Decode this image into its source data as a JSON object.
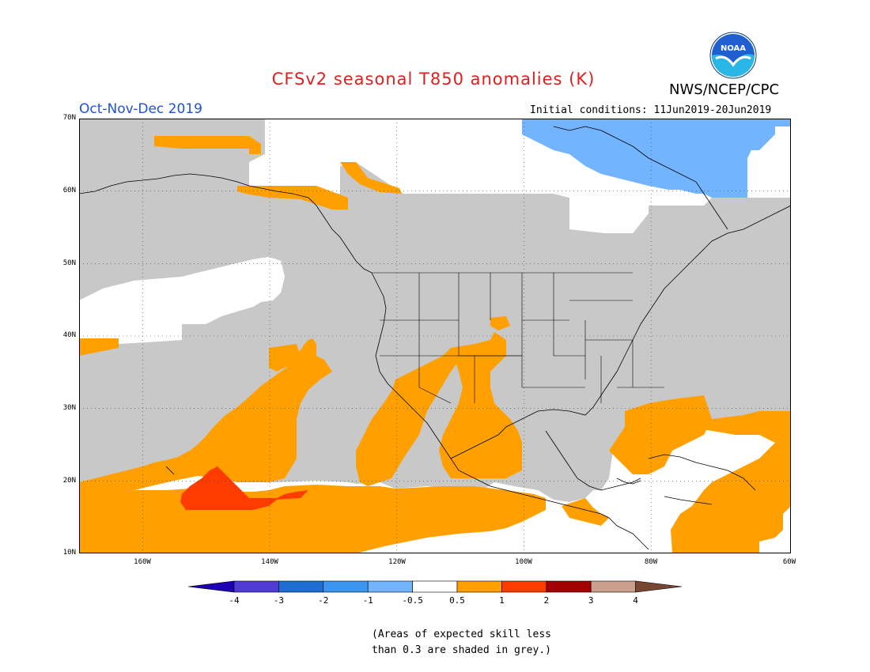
{
  "title": "CFSv2 seasonal T850 anomalies (K)",
  "agency": "NWS/NCEP/CPC",
  "logo_text": "NOAA",
  "period": "Oct-Nov-Dec 2019",
  "initial_conditions": "Initial conditions: 11Jun2019-20Jun2019",
  "map": {
    "lat_labels": [
      "70N",
      "60N",
      "50N",
      "40N",
      "30N",
      "20N",
      "10N"
    ],
    "lon_labels": [
      "160W",
      "140W",
      "120W",
      "100W",
      "80W",
      "60W"
    ],
    "extent": {
      "lon": [
        -172,
        -60
      ],
      "lat": [
        10,
        70
      ]
    },
    "colors": {
      "grey": "#c8c8c8",
      "orange": "#ffa000",
      "red": "#ff3c00",
      "lightblue": "#73b4ff",
      "white": "#ffffff"
    }
  },
  "colorbar": {
    "labels": [
      "-4",
      "-3",
      "-2",
      "-1",
      "-0.5",
      "0.5",
      "1",
      "2",
      "3",
      "4"
    ],
    "colors": [
      "#1e00b4",
      "#503cd2",
      "#1e6ed2",
      "#3c96f0",
      "#73b4ff",
      "#ffffff",
      "#ffa000",
      "#ff3c00",
      "#a00000",
      "#c8a08c",
      "#784632"
    ]
  },
  "note": {
    "line1": "(Areas of expected skill less",
    "line2": "than 0.3 are shaded in grey.)"
  }
}
